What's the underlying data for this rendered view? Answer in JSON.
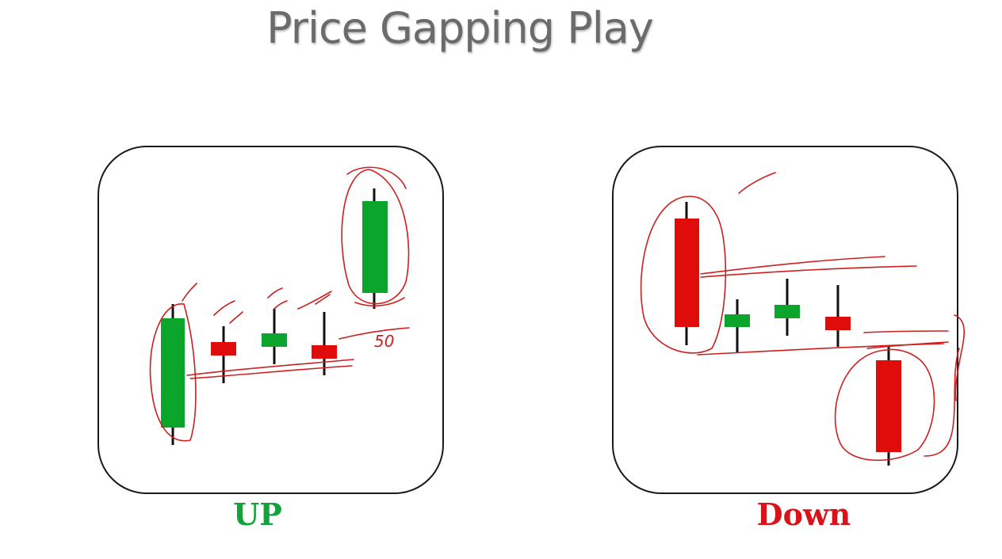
{
  "title": "Price Gapping Play",
  "panels": {
    "up": {
      "caption": "UP"
    },
    "down": {
      "caption": "Down"
    }
  },
  "annotation_text": "50",
  "colors": {
    "title": "#6b6b6b",
    "bull": "#0aa52a",
    "bear": "#e00c0c",
    "wick": "#111111",
    "ink": "#cc1f1f",
    "up_caption": "#12a33a",
    "down_caption": "#d8141a"
  }
}
